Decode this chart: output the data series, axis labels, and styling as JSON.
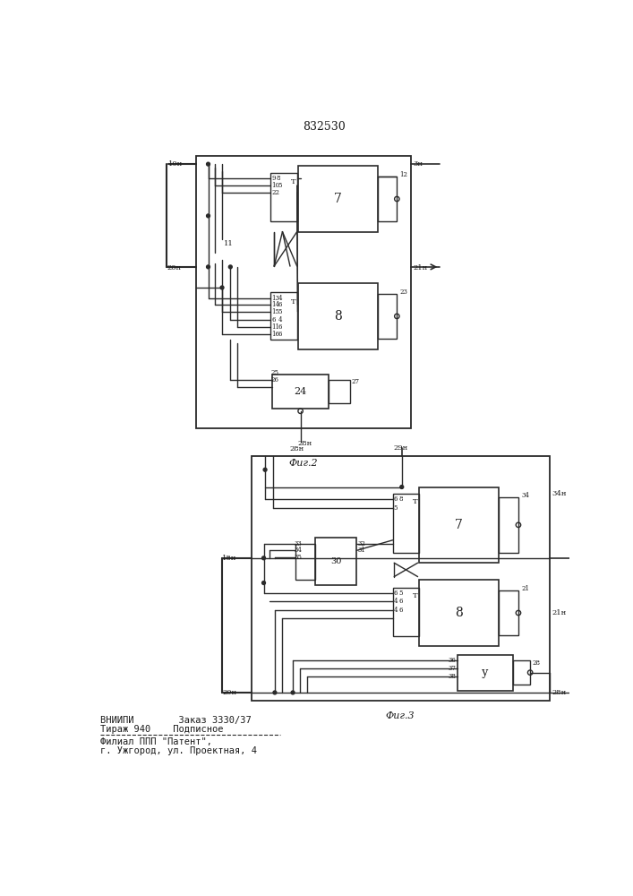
{
  "title": "832530",
  "fig2_label": "Фиг.2",
  "fig3_label": "Фиг.3",
  "line_color": "#2a2a2a",
  "font_color": "#1a1a1a",
  "footer_line1": "ВНИИПИ        Заказ 3330/37",
  "footer_line2": "Тираж 940    Подписное",
  "footer_sep": "-----------------------------",
  "footer_line3": "Филиал ППП \"Патент\",",
  "footer_line4": "г. Ужгород, ул. Проектная, 4"
}
